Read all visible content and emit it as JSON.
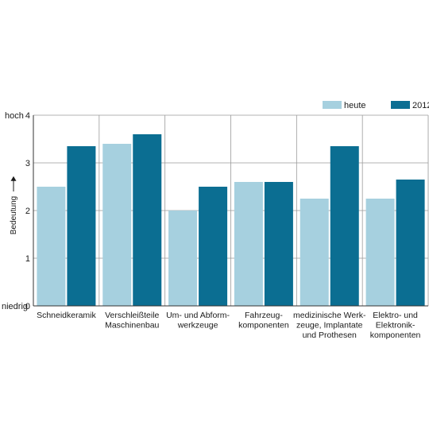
{
  "chart_data": {
    "type": "bar",
    "title": "",
    "xlabel": "",
    "ylabel": "Bedeutung",
    "ylim": [
      0,
      4
    ],
    "yticks": [
      0,
      1,
      2,
      3,
      4
    ],
    "ytick_labels": [
      "0",
      "1",
      "2",
      "3",
      "4"
    ],
    "y_low_label": "niedrig",
    "y_high_label": "hoch",
    "grid": true,
    "legend_position": "top-right",
    "categories": [
      [
        "Schneidkeramik"
      ],
      [
        "Verschleißteile",
        "Maschinenbau"
      ],
      [
        "Um- und Abform-",
        "werkzeuge"
      ],
      [
        "Fahrzeug-",
        "komponenten"
      ],
      [
        "medizinische Werk-",
        "zeuge, Implantate",
        "und Prothesen"
      ],
      [
        "Elektro- und",
        "Elektronik-",
        "komponenten"
      ]
    ],
    "series": [
      {
        "name": "heute",
        "color": "#a6d0df",
        "values": [
          2.5,
          3.4,
          2.0,
          2.6,
          2.25,
          2.25
        ]
      },
      {
        "name": "2012",
        "color": "#0b6e92",
        "values": [
          3.35,
          3.6,
          2.5,
          2.6,
          3.35,
          2.65
        ]
      }
    ]
  }
}
